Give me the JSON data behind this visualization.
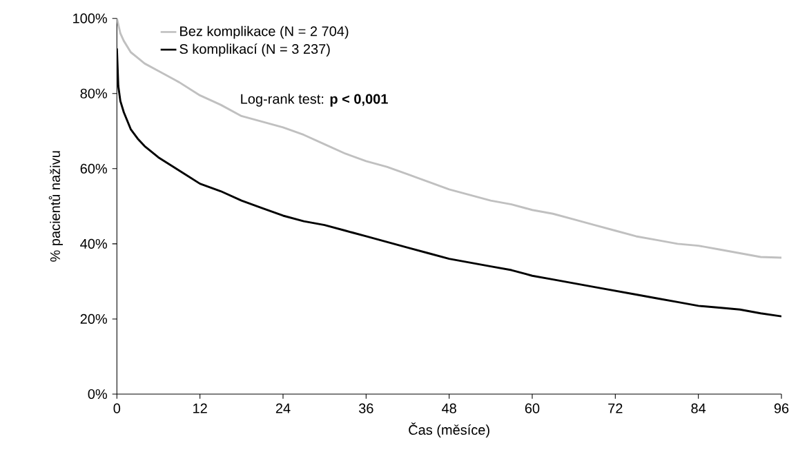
{
  "chart_data": {
    "type": "line",
    "xlabel": "Čas (měsíce)",
    "ylabel": "% pacientů naživu",
    "annotations": [
      "Log-rank test: **p < 0,001**"
    ],
    "xlim": [
      0,
      96
    ],
    "xticks": [
      0,
      12,
      24,
      36,
      48,
      60,
      72,
      84,
      96
    ],
    "ylim": [
      0,
      100
    ],
    "yticks": [
      {
        "value": 0,
        "label": "0%"
      },
      {
        "value": 20,
        "label": "20%"
      },
      {
        "value": 40,
        "label": "40%"
      },
      {
        "value": 60,
        "label": "60%"
      },
      {
        "value": 80,
        "label": "80%"
      },
      {
        "value": 100,
        "label": "100%"
      }
    ],
    "grid": false,
    "legend": "top left",
    "marker": "none",
    "line_style": "solid",
    "series": [
      {
        "name": "Bez komplikace (N = 2 704)",
        "color": "#c0c0c0",
        "x": [
          0,
          0.5,
          1,
          2,
          3,
          4,
          6,
          9,
          12,
          15,
          18,
          21,
          24,
          27,
          30,
          33,
          36,
          39,
          42,
          45,
          48,
          51,
          54,
          57,
          60,
          63,
          66,
          69,
          72,
          75,
          78,
          81,
          84,
          87,
          90,
          93,
          96
        ],
        "values": [
          100,
          96,
          94,
          91,
          89.5,
          88,
          86,
          83,
          79.5,
          77,
          74,
          72.5,
          71,
          69,
          66.5,
          64,
          62,
          60.5,
          58.5,
          56.5,
          54.5,
          53,
          51.5,
          50.5,
          49,
          48,
          46.5,
          45,
          43.5,
          42,
          41,
          40,
          39.5,
          38.5,
          37.5,
          36.5,
          36.3
        ]
      },
      {
        "name": "S komplikací (N = 3 237)",
        "color": "#000000",
        "x": [
          0,
          0.2,
          0.5,
          1,
          2,
          3,
          4,
          6,
          9,
          12,
          15,
          18,
          21,
          24,
          27,
          30,
          33,
          36,
          39,
          42,
          45,
          48,
          51,
          54,
          57,
          60,
          63,
          66,
          69,
          72,
          75,
          78,
          81,
          84,
          87,
          90,
          93,
          96
        ],
        "values": [
          92,
          82,
          78,
          75,
          70.5,
          68,
          66,
          63,
          59.5,
          56,
          54,
          51.5,
          49.5,
          47.5,
          46,
          45,
          43.5,
          42,
          40.5,
          39,
          37.5,
          36,
          35,
          34,
          33,
          31.5,
          30.5,
          29.5,
          28.5,
          27.5,
          26.5,
          25.5,
          24.5,
          23.5,
          23,
          22.5,
          21.5,
          20.7
        ]
      }
    ]
  }
}
